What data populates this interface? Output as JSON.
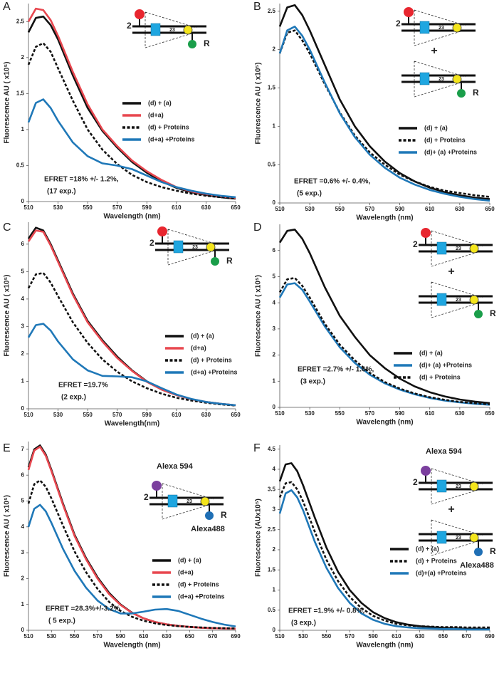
{
  "chart_data": [
    {
      "panel_label": "A",
      "type": "line",
      "x_label": "Wavelength (nm)",
      "y_label": "Fluorescence AU ( x10⁵)",
      "x": [
        510,
        515,
        520,
        525,
        530,
        540,
        550,
        560,
        570,
        580,
        590,
        600,
        610,
        620,
        630,
        640,
        650
      ],
      "xlim": [
        510,
        650
      ],
      "xticks": [
        510,
        530,
        550,
        570,
        590,
        610,
        630,
        650
      ],
      "ylim": [
        0,
        2.75
      ],
      "yticks": [
        0,
        0.5,
        1,
        1.5,
        2,
        2.5
      ],
      "series": [
        {
          "name": "(d) + (a)",
          "color": "#111111",
          "line_style": "solid",
          "values": [
            2.35,
            2.55,
            2.57,
            2.45,
            2.25,
            1.75,
            1.3,
            0.98,
            0.75,
            0.55,
            0.4,
            0.28,
            0.19,
            0.13,
            0.09,
            0.06,
            0.04
          ]
        },
        {
          "name": "(d+a)",
          "color": "#e8474f",
          "line_style": "solid",
          "values": [
            2.5,
            2.68,
            2.66,
            2.52,
            2.3,
            1.8,
            1.35,
            1.0,
            0.77,
            0.57,
            0.42,
            0.3,
            0.2,
            0.14,
            0.1,
            0.07,
            0.05
          ]
        },
        {
          "name": "(d) + Proteins",
          "color": "#111111",
          "line_style": "dashed",
          "values": [
            1.9,
            2.15,
            2.2,
            2.08,
            1.85,
            1.4,
            1.0,
            0.72,
            0.52,
            0.37,
            0.27,
            0.2,
            0.15,
            0.11,
            0.08,
            0.06,
            0.04
          ]
        },
        {
          "name": "(d+a) +Proteins",
          "color": "#1f78b8",
          "line_style": "solid",
          "values": [
            1.1,
            1.37,
            1.42,
            1.3,
            1.12,
            0.82,
            0.63,
            0.53,
            0.5,
            0.45,
            0.36,
            0.27,
            0.2,
            0.15,
            0.11,
            0.08,
            0.06
          ]
        }
      ],
      "annotations": [
        "EFRET =18% +/- 1.2%,",
        "(17 exp.)"
      ],
      "diagram": {
        "constructs": [
          {
            "left_label": "2",
            "number": "23",
            "top_dye_color": "#e8262f",
            "bottom_dye_color": "#1a9e4a",
            "bottom_label": "R"
          }
        ]
      }
    },
    {
      "panel_label": "B",
      "type": "line",
      "x_label": "Wavelength (nm)",
      "y_label": "Fluorescence AU ( x10⁵)",
      "x": [
        510,
        515,
        520,
        525,
        530,
        540,
        550,
        560,
        570,
        580,
        590,
        600,
        610,
        620,
        630,
        640,
        650
      ],
      "xlim": [
        510,
        650
      ],
      "xticks": [
        510,
        530,
        550,
        570,
        590,
        610,
        630,
        650
      ],
      "ylim": [
        0,
        2.6
      ],
      "yticks": [
        0,
        0.5,
        1,
        1.5,
        2,
        2.5
      ],
      "series": [
        {
          "name": "(d) + (a)",
          "color": "#111111",
          "line_style": "solid",
          "values": [
            2.3,
            2.55,
            2.58,
            2.45,
            2.25,
            1.8,
            1.35,
            1.0,
            0.74,
            0.54,
            0.39,
            0.28,
            0.2,
            0.14,
            0.1,
            0.07,
            0.05
          ]
        },
        {
          "name": "(d) + Proteins",
          "color": "#111111",
          "line_style": "dashed",
          "values": [
            1.95,
            2.22,
            2.25,
            2.12,
            1.95,
            1.55,
            1.18,
            0.88,
            0.66,
            0.5,
            0.37,
            0.28,
            0.21,
            0.16,
            0.13,
            0.1,
            0.08
          ]
        },
        {
          "name": "(d)+ (a) +Proteins",
          "color": "#1f78b8",
          "line_style": "solid",
          "values": [
            1.95,
            2.25,
            2.3,
            2.18,
            2.0,
            1.57,
            1.17,
            0.86,
            0.63,
            0.46,
            0.33,
            0.24,
            0.17,
            0.12,
            0.08,
            0.05,
            0.03
          ]
        }
      ],
      "annotations": [
        "EFRET =0.6% +/- 0.4%,",
        "(5 exp.)"
      ],
      "diagram": {
        "separator": "+",
        "constructs": [
          {
            "left_label": "2",
            "number": "23",
            "top_dye_color": "#e8262f"
          },
          {
            "number": "23",
            "bottom_dye_color": "#1a9e4a",
            "bottom_label": "R"
          }
        ]
      }
    },
    {
      "panel_label": "C",
      "type": "line",
      "x_label": "Wavelength(nm)",
      "y_label": "Fluorescence AU ( x10⁵)",
      "x": [
        510,
        515,
        520,
        525,
        530,
        540,
        550,
        560,
        570,
        580,
        590,
        600,
        610,
        620,
        630,
        640,
        650
      ],
      "xlim": [
        510,
        650
      ],
      "xticks": [
        510,
        530,
        550,
        570,
        590,
        610,
        630,
        650
      ],
      "ylim": [
        0,
        6.8
      ],
      "yticks": [
        0,
        1,
        2,
        3,
        4,
        5,
        6
      ],
      "series": [
        {
          "name": "(d) + (a)",
          "color": "#111111",
          "line_style": "solid",
          "values": [
            6.2,
            6.6,
            6.5,
            6.0,
            5.4,
            4.2,
            3.2,
            2.5,
            1.9,
            1.4,
            1.0,
            0.7,
            0.5,
            0.35,
            0.25,
            0.18,
            0.13
          ]
        },
        {
          "name": "(d+a)",
          "color": "#e8474f",
          "line_style": "solid",
          "values": [
            6.1,
            6.5,
            6.45,
            5.95,
            5.35,
            4.15,
            3.15,
            2.45,
            1.85,
            1.38,
            0.98,
            0.7,
            0.5,
            0.35,
            0.25,
            0.18,
            0.13
          ]
        },
        {
          "name": "(d) + Proteins",
          "color": "#111111",
          "line_style": "dashed",
          "values": [
            4.4,
            4.9,
            4.95,
            4.6,
            4.1,
            3.15,
            2.4,
            1.8,
            1.35,
            1.0,
            0.75,
            0.55,
            0.4,
            0.3,
            0.22,
            0.16,
            0.12
          ]
        },
        {
          "name": "(d+a) +Proteins",
          "color": "#1f78b8",
          "line_style": "solid",
          "values": [
            2.6,
            3.05,
            3.1,
            2.85,
            2.45,
            1.8,
            1.4,
            1.2,
            1.18,
            1.15,
            1.0,
            0.75,
            0.52,
            0.36,
            0.25,
            0.18,
            0.13
          ]
        }
      ],
      "annotations": [
        "EFRET =19.7%",
        "(2 exp.)"
      ],
      "diagram": {
        "constructs": [
          {
            "left_label": "2",
            "number": "23",
            "top_dye_color": "#e8262f",
            "bottom_dye_color": "#1a9e4a",
            "bottom_label": "R"
          }
        ]
      }
    },
    {
      "panel_label": "D",
      "type": "line",
      "x_label": "Wavelength (nm)",
      "y_label": "Fluorescence AU ( x10⁵)",
      "x": [
        510,
        515,
        520,
        525,
        530,
        540,
        550,
        560,
        570,
        580,
        590,
        600,
        610,
        620,
        630,
        640,
        650
      ],
      "xlim": [
        510,
        650
      ],
      "xticks": [
        510,
        530,
        550,
        570,
        590,
        610,
        630,
        650
      ],
      "ylim": [
        0,
        7
      ],
      "yticks": [
        0,
        1,
        2,
        3,
        4,
        5,
        6
      ],
      "series": [
        {
          "name": "(d) + (a)",
          "color": "#111111",
          "line_style": "solid",
          "values": [
            6.3,
            6.75,
            6.8,
            6.45,
            5.9,
            4.6,
            3.5,
            2.7,
            2.0,
            1.5,
            1.1,
            0.8,
            0.58,
            0.42,
            0.3,
            0.22,
            0.16
          ]
        },
        {
          "name": "(d)+ (a) +Proteins",
          "color": "#1f78b8",
          "line_style": "solid",
          "values": [
            4.2,
            4.7,
            4.75,
            4.5,
            4.05,
            3.1,
            2.3,
            1.7,
            1.25,
            0.92,
            0.68,
            0.5,
            0.36,
            0.26,
            0.19,
            0.14,
            0.1
          ]
        },
        {
          "name": "(d) + Proteins",
          "color": "#111111",
          "line_style": "dashed",
          "values": [
            4.4,
            4.9,
            4.95,
            4.65,
            4.2,
            3.2,
            2.4,
            1.8,
            1.32,
            0.97,
            0.72,
            0.53,
            0.39,
            0.29,
            0.21,
            0.16,
            0.12
          ]
        }
      ],
      "annotations": [
        "EFRET =2.7% +/- 1.6%,",
        "(3 exp.)"
      ],
      "diagram": {
        "separator": "+",
        "constructs": [
          {
            "left_label": "2",
            "number": "23",
            "top_dye_color": "#e8262f"
          },
          {
            "number": "23",
            "bottom_dye_color": "#1a9e4a",
            "bottom_label": "R"
          }
        ]
      }
    },
    {
      "panel_label": "E",
      "type": "line",
      "x_label": "Wavelength (nm)",
      "y_label": "Fluorescence AU ( x10⁵)",
      "x": [
        510,
        515,
        520,
        525,
        530,
        540,
        550,
        560,
        570,
        580,
        590,
        600,
        610,
        620,
        630,
        640,
        650,
        660,
        670,
        680,
        690
      ],
      "xlim": [
        510,
        690
      ],
      "xticks": [
        510,
        530,
        550,
        570,
        590,
        610,
        630,
        650,
        670,
        690
      ],
      "ylim": [
        0,
        7.3
      ],
      "yticks": [
        0,
        1,
        2,
        3,
        4,
        5,
        6,
        7
      ],
      "series": [
        {
          "name": "(d) + (a)",
          "color": "#111111",
          "line_style": "solid",
          "values": [
            6.3,
            7.0,
            7.15,
            6.8,
            6.2,
            4.9,
            3.7,
            2.8,
            2.05,
            1.45,
            1.0,
            0.68,
            0.46,
            0.32,
            0.23,
            0.17,
            0.13,
            0.1,
            0.08,
            0.07,
            0.06
          ]
        },
        {
          "name": "(d+a)",
          "color": "#e8474f",
          "line_style": "solid",
          "values": [
            6.2,
            6.95,
            7.1,
            6.75,
            6.15,
            4.85,
            3.65,
            2.75,
            2.0,
            1.4,
            0.98,
            0.67,
            0.46,
            0.32,
            0.23,
            0.17,
            0.13,
            0.1,
            0.08,
            0.07,
            0.06
          ]
        },
        {
          "name": "(d) + Proteins",
          "color": "#111111",
          "line_style": "dashed",
          "values": [
            4.9,
            5.65,
            5.8,
            5.55,
            5.1,
            4.05,
            3.05,
            2.25,
            1.6,
            1.1,
            0.75,
            0.52,
            0.37,
            0.27,
            0.2,
            0.16,
            0.13,
            0.11,
            0.09,
            0.08,
            0.07
          ]
        },
        {
          "name": "(d+a) +Proteins",
          "color": "#1f78b8",
          "line_style": "solid",
          "values": [
            4.0,
            4.7,
            4.85,
            4.6,
            4.15,
            3.15,
            2.3,
            1.65,
            1.15,
            0.82,
            0.65,
            0.65,
            0.72,
            0.8,
            0.82,
            0.75,
            0.6,
            0.45,
            0.32,
            0.22,
            0.15
          ]
        }
      ],
      "annotations": [
        "EFRET =28.3%+/-3.2%",
        "( 5 exp.)"
      ],
      "diagram": {
        "constructs": [
          {
            "left_label": "2",
            "number": "23",
            "top_dye_color": "#7b3f9e",
            "top_dye_name": "Alexa 594",
            "bottom_dye_color": "#1f6fb5",
            "bottom_label": "R",
            "bottom_dye_name": "Alexa488"
          }
        ]
      }
    },
    {
      "panel_label": "F",
      "type": "line",
      "x_label": "Wavelength (nm)",
      "y_label": "Fluorescence (AUx10⁵)",
      "x": [
        510,
        515,
        520,
        525,
        530,
        540,
        550,
        560,
        570,
        580,
        590,
        600,
        610,
        620,
        630,
        640,
        650,
        660,
        670,
        680,
        690
      ],
      "xlim": [
        510,
        690
      ],
      "xticks": [
        510,
        530,
        550,
        570,
        590,
        610,
        630,
        650,
        670,
        690
      ],
      "ylim": [
        0,
        4.6
      ],
      "yticks": [
        0,
        0.5,
        1,
        1.5,
        2,
        2.5,
        3,
        3.5,
        4,
        4.5
      ],
      "series": [
        {
          "name": "(d) + (a)",
          "color": "#111111",
          "line_style": "solid",
          "values": [
            3.7,
            4.12,
            4.15,
            3.95,
            3.6,
            2.8,
            2.05,
            1.45,
            1.0,
            0.68,
            0.45,
            0.3,
            0.2,
            0.14,
            0.1,
            0.08,
            0.06,
            0.05,
            0.04,
            0.04,
            0.03
          ]
        },
        {
          "name": "(d) + Proteins",
          "color": "#111111",
          "line_style": "dashed",
          "values": [
            3.3,
            3.65,
            3.68,
            3.5,
            3.2,
            2.45,
            1.75,
            1.22,
            0.83,
            0.55,
            0.36,
            0.24,
            0.16,
            0.12,
            0.1,
            0.09,
            0.08,
            0.08,
            0.07,
            0.07,
            0.07
          ]
        },
        {
          "name": "(d)+(a) +Proteins",
          "color": "#1f78b8",
          "line_style": "solid",
          "values": [
            2.9,
            3.4,
            3.48,
            3.3,
            2.98,
            2.2,
            1.55,
            1.05,
            0.68,
            0.42,
            0.26,
            0.16,
            0.1,
            0.07,
            0.05,
            0.04,
            0.03,
            0.03,
            0.02,
            0.02,
            0.02
          ]
        }
      ],
      "annotations": [
        "EFRET =1.9% +/- 0.8%,",
        "(3 exp.)"
      ],
      "diagram": {
        "separator": "+",
        "constructs": [
          {
            "left_label": "2",
            "number": "23",
            "top_dye_color": "#7b3f9e",
            "top_dye_name": "Alexa 594"
          },
          {
            "number": "23",
            "bottom_dye_color": "#1f6fb5",
            "bottom_label": "R",
            "bottom_dye_name": "Alexa488"
          }
        ]
      }
    }
  ]
}
